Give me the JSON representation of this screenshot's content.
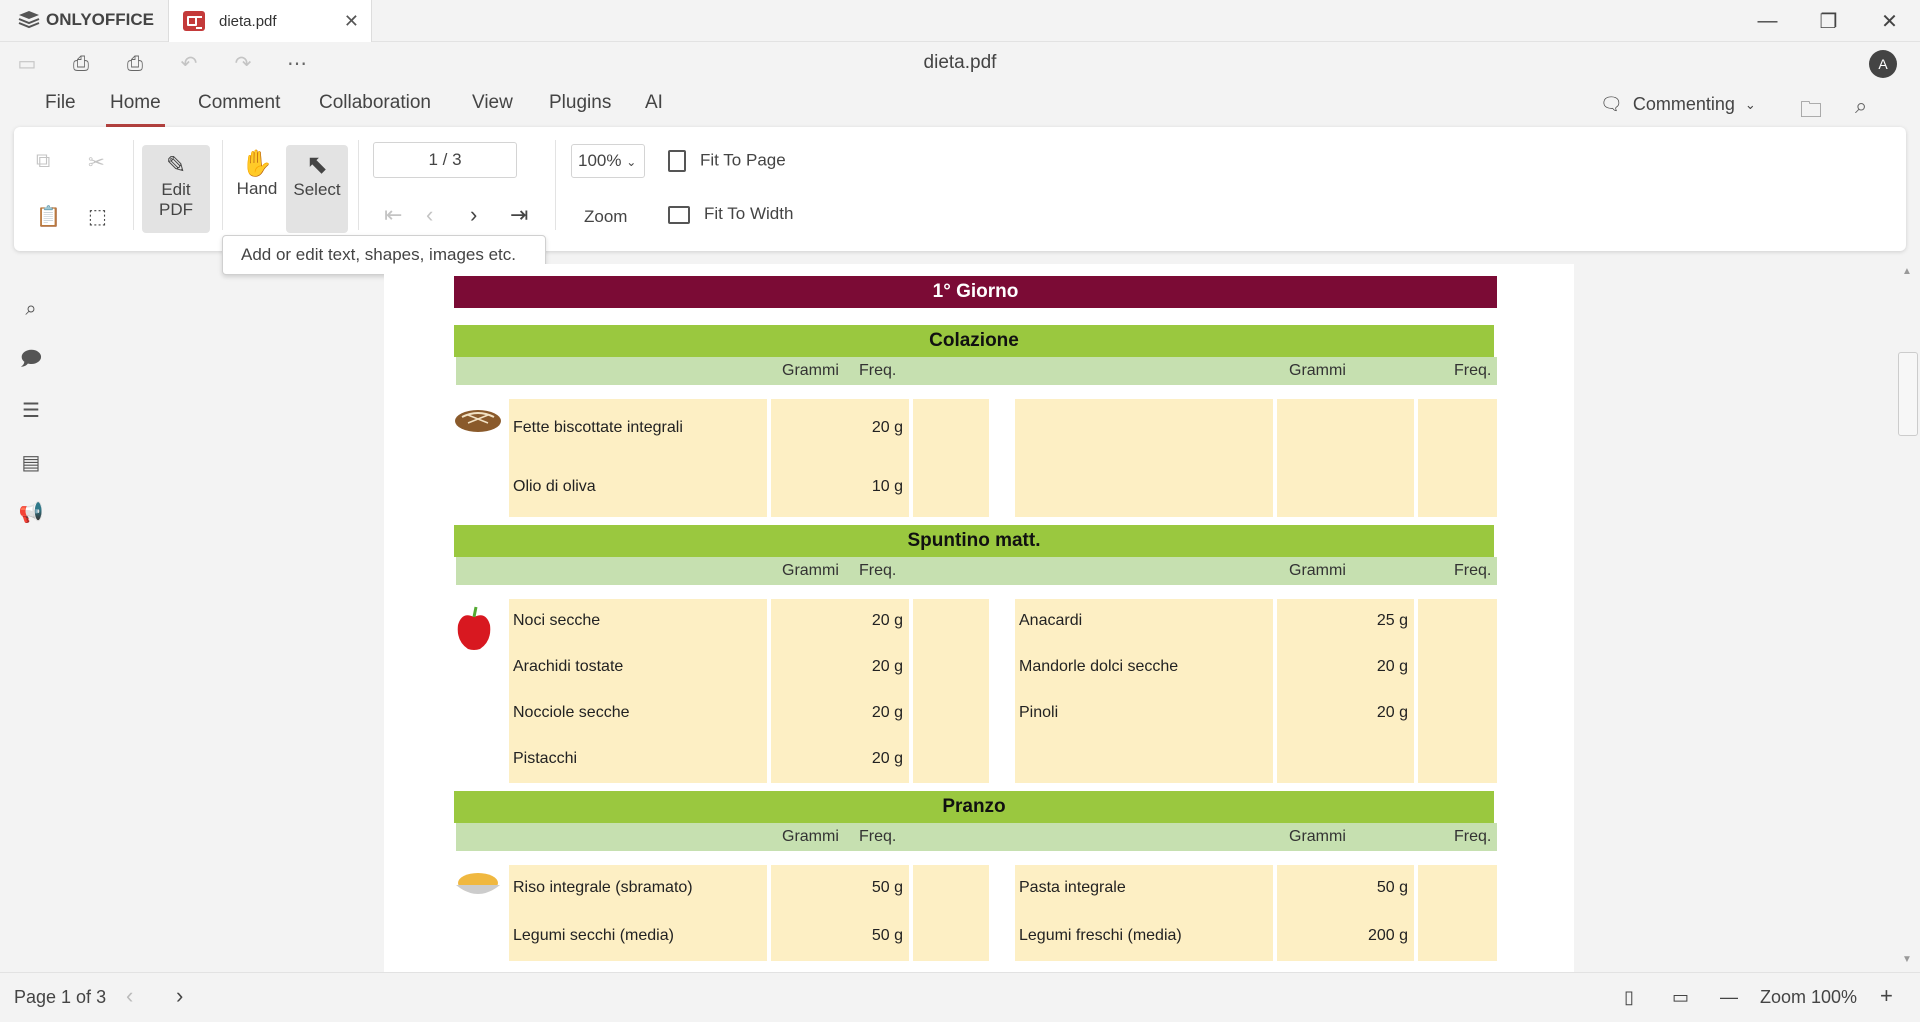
{
  "app": {
    "brand": "ONLYOFFICE",
    "tab_name": "dieta.pdf",
    "doc_title": "dieta.pdf",
    "avatar_initial": "A"
  },
  "menu": [
    "File",
    "Home",
    "Comment",
    "Collaboration",
    "View",
    "Plugins",
    "AI"
  ],
  "mode": {
    "label": "Commenting"
  },
  "ribbon": {
    "edit_pdf": [
      "Edit",
      "PDF"
    ],
    "hand": "Hand",
    "select": "Select",
    "page_indicator": "1 / 3",
    "zoom_value": "100%",
    "zoom_label": "Zoom",
    "fit_page": "Fit To Page",
    "fit_width": "Fit To Width"
  },
  "tooltip": "Add or edit text, shapes, images etc.",
  "status": {
    "page": "Page 1 of 3",
    "zoom": "Zoom 100%"
  },
  "document": {
    "day_title": "1° Giorno",
    "col_grammi": "Grammi",
    "col_freq": "Freq.",
    "sections": [
      {
        "title": "Colazione",
        "icon": "bread-icon",
        "left": [
          {
            "name": "Fette biscottate integrali",
            "g": "20 g"
          },
          {
            "name": "Olio di oliva",
            "g": "10 g"
          }
        ],
        "right": [
          {
            "name": "",
            "g": ""
          },
          {
            "name": "",
            "g": ""
          }
        ]
      },
      {
        "title": "Spuntino matt.",
        "icon": "apple-icon",
        "left": [
          {
            "name": "Noci secche",
            "g": "20 g"
          },
          {
            "name": "Arachidi tostate",
            "g": "20 g"
          },
          {
            "name": "Nocciole secche",
            "g": "20 g"
          },
          {
            "name": "Pistacchi",
            "g": "20 g"
          }
        ],
        "right": [
          {
            "name": "Anacardi",
            "g": "25 g"
          },
          {
            "name": "Mandorle dolci secche",
            "g": "20 g"
          },
          {
            "name": "Pinoli",
            "g": "20 g"
          },
          {
            "name": "",
            "g": ""
          }
        ]
      },
      {
        "title": "Pranzo",
        "icon": "rice-bowl-icon",
        "left": [
          {
            "name": "Riso integrale (sbramato)",
            "g": "50 g"
          },
          {
            "name": "Legumi secchi (media)",
            "g": "50 g"
          }
        ],
        "right": [
          {
            "name": "Pasta integrale",
            "g": "50 g"
          },
          {
            "name": "Legumi freschi (media)",
            "g": "200 g"
          }
        ]
      }
    ]
  }
}
